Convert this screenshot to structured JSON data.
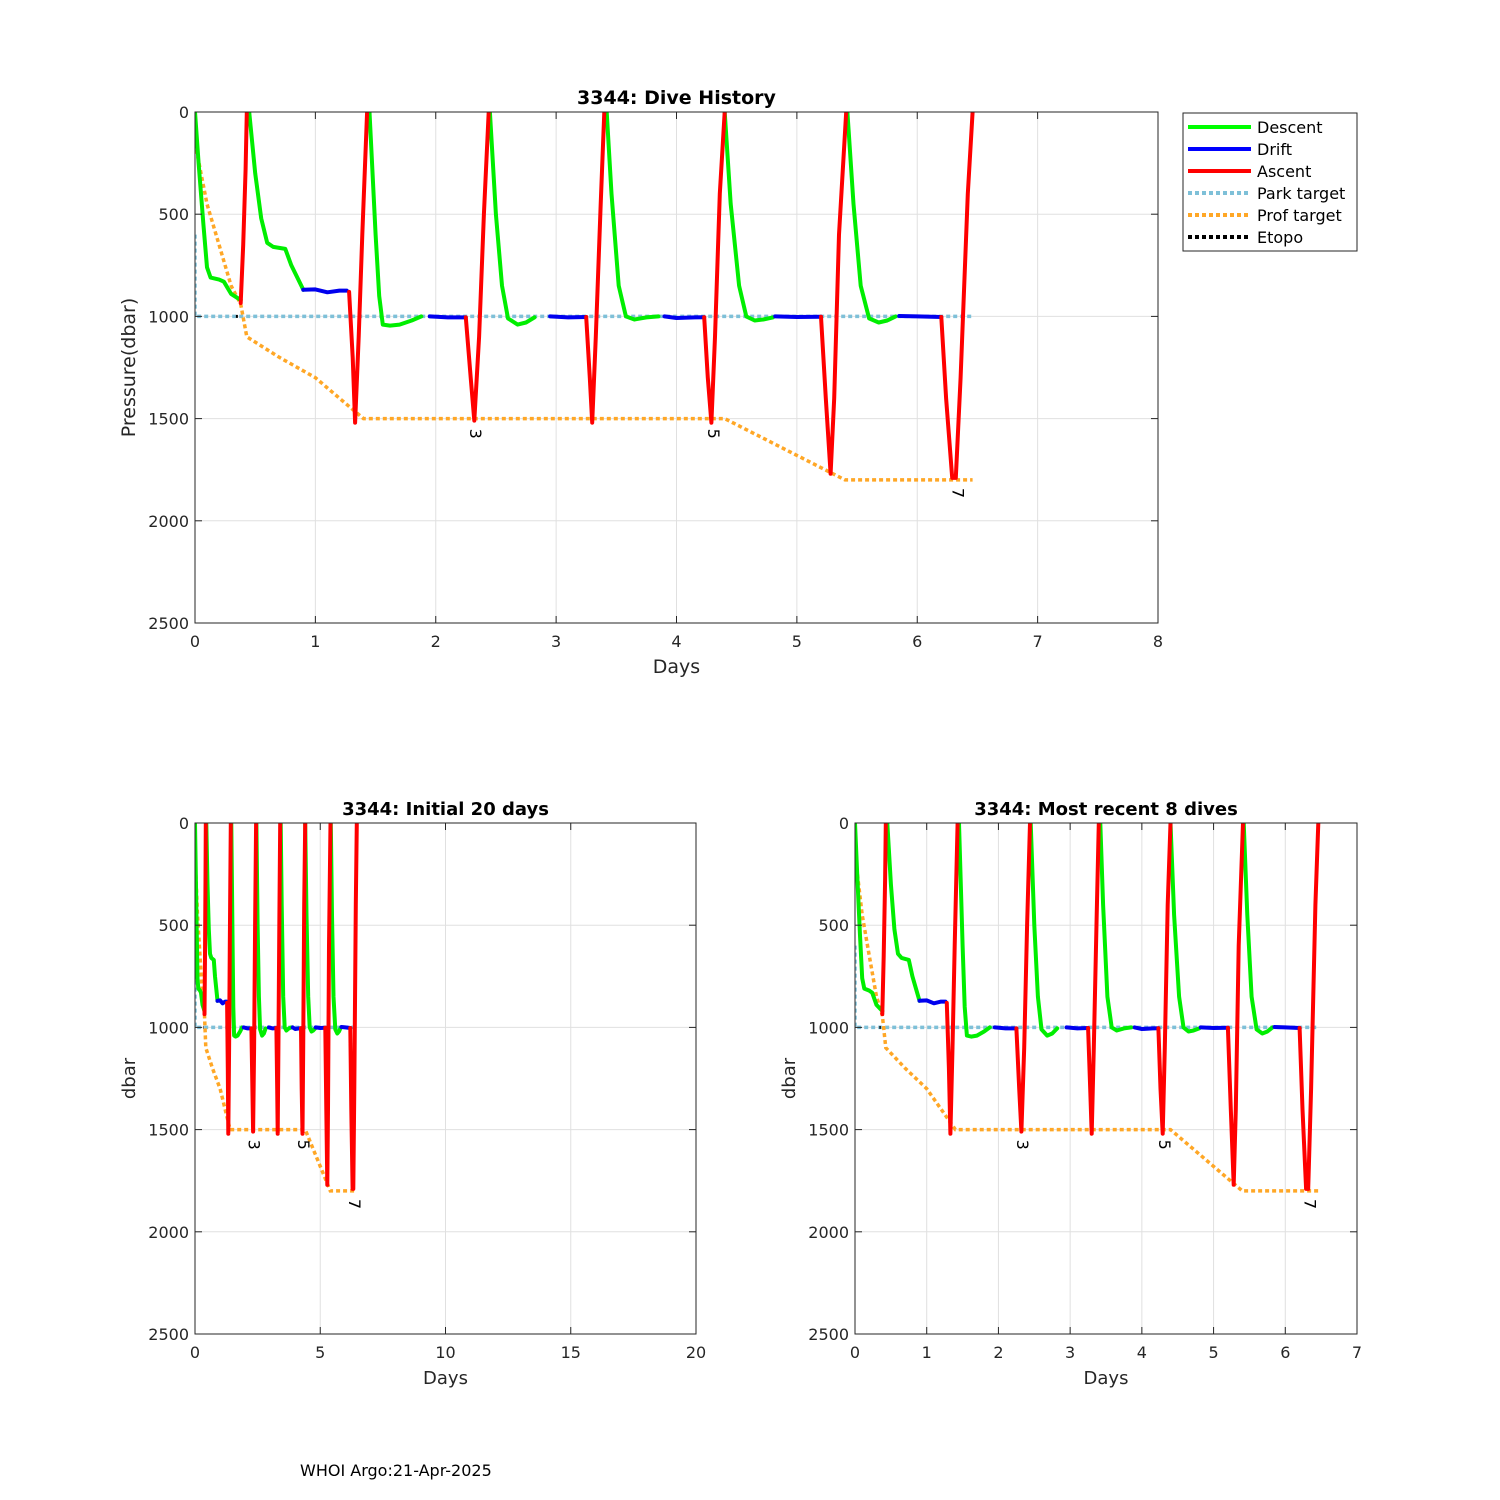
{
  "footer": "WHOI Argo:21-Apr-2025",
  "legend": {
    "entries": [
      {
        "label": "Descent",
        "color": "#00ff00",
        "style": "solid"
      },
      {
        "label": "Drift",
        "color": "#0000ff",
        "style": "solid"
      },
      {
        "label": "Ascent",
        "color": "#ff0000",
        "style": "solid"
      },
      {
        "label": "Park target",
        "color": "#7ec0d8",
        "style": "dotted"
      },
      {
        "label": "Prof target",
        "color": "#ffa726",
        "style": "dotted"
      },
      {
        "label": "Etopo",
        "color": "#000000",
        "style": "dotted"
      }
    ]
  },
  "chart_data": [
    {
      "id": "main",
      "type": "line",
      "title": "3344: Dive History",
      "xlabel": "Days",
      "ylabel": "Pressure(dbar)",
      "xlim": [
        0,
        8
      ],
      "ylim": [
        0,
        2500
      ],
      "y_reversed": true,
      "xticks": [
        0,
        1,
        2,
        3,
        4,
        5,
        6,
        7,
        8
      ],
      "yticks": [
        0,
        500,
        1000,
        1500,
        2000,
        2500
      ],
      "grid": true,
      "legend_position": "outside-top-right",
      "profile_labels": [
        {
          "text": "3",
          "x": 2.32,
          "y": 1510
        },
        {
          "text": "5",
          "x": 4.3,
          "y": 1510
        },
        {
          "text": "7",
          "x": 6.33,
          "y": 1800
        }
      ]
    },
    {
      "id": "initial",
      "type": "line",
      "title": "3344: Initial 20 days",
      "xlabel": "Days",
      "ylabel": "dbar",
      "xlim": [
        0,
        20
      ],
      "ylim": [
        0,
        2500
      ],
      "y_reversed": true,
      "xticks": [
        0,
        5,
        10,
        15,
        20
      ],
      "yticks": [
        0,
        500,
        1000,
        1500,
        2000,
        2500
      ],
      "grid": true,
      "profile_labels": [
        {
          "text": "3",
          "x": 2.32,
          "y": 1510
        },
        {
          "text": "5",
          "x": 4.3,
          "y": 1510
        },
        {
          "text": "7",
          "x": 6.33,
          "y": 1800
        }
      ]
    },
    {
      "id": "recent",
      "type": "line",
      "title": "3344: Most recent 8 dives",
      "xlabel": "Days",
      "ylabel": "dbar",
      "xlim": [
        0,
        7
      ],
      "ylim": [
        0,
        2500
      ],
      "y_reversed": true,
      "xticks": [
        0,
        1,
        2,
        3,
        4,
        5,
        6,
        7
      ],
      "yticks": [
        0,
        500,
        1000,
        1500,
        2000,
        2500
      ],
      "grid": true,
      "profile_labels": [
        {
          "text": "3",
          "x": 2.32,
          "y": 1510
        },
        {
          "text": "5",
          "x": 4.3,
          "y": 1510
        },
        {
          "text": "7",
          "x": 6.33,
          "y": 1800
        }
      ]
    }
  ],
  "series": {
    "descent": [
      [
        [
          0.0,
          0
        ],
        [
          0.03,
          250
        ],
        [
          0.07,
          550
        ],
        [
          0.1,
          760
        ],
        [
          0.13,
          810
        ],
        [
          0.2,
          820
        ],
        [
          0.24,
          830
        ],
        [
          0.3,
          890
        ],
        [
          0.38,
          920
        ]
      ],
      [
        [
          0.45,
          0
        ],
        [
          0.5,
          300
        ],
        [
          0.55,
          520
        ],
        [
          0.6,
          640
        ],
        [
          0.65,
          660
        ],
        [
          0.75,
          670
        ],
        [
          0.8,
          750
        ],
        [
          0.9,
          870
        ]
      ],
      [
        [
          1.45,
          0
        ],
        [
          1.5,
          600
        ],
        [
          1.53,
          900
        ],
        [
          1.56,
          1040
        ],
        [
          1.62,
          1045
        ],
        [
          1.7,
          1040
        ],
        [
          1.8,
          1020
        ],
        [
          1.88,
          1000
        ]
      ],
      [
        [
          2.45,
          0
        ],
        [
          2.5,
          500
        ],
        [
          2.55,
          850
        ],
        [
          2.6,
          1010
        ],
        [
          2.68,
          1040
        ],
        [
          2.75,
          1030
        ],
        [
          2.82,
          1005
        ]
      ],
      [
        [
          3.42,
          0
        ],
        [
          3.46,
          400
        ],
        [
          3.52,
          850
        ],
        [
          3.58,
          1000
        ],
        [
          3.65,
          1015
        ],
        [
          3.75,
          1005
        ],
        [
          3.85,
          1000
        ]
      ],
      [
        [
          4.4,
          0
        ],
        [
          4.45,
          450
        ],
        [
          4.52,
          850
        ],
        [
          4.58,
          1000
        ],
        [
          4.65,
          1020
        ],
        [
          4.72,
          1015
        ],
        [
          4.8,
          1005
        ]
      ],
      [
        [
          5.42,
          0
        ],
        [
          5.47,
          450
        ],
        [
          5.53,
          850
        ],
        [
          5.6,
          1010
        ],
        [
          5.68,
          1030
        ],
        [
          5.75,
          1020
        ],
        [
          5.82,
          1000
        ]
      ]
    ],
    "drift": [
      [
        [
          0.9,
          870
        ],
        [
          1.0,
          868
        ],
        [
          1.1,
          882
        ],
        [
          1.2,
          874
        ],
        [
          1.26,
          874
        ]
      ],
      [
        [
          1.95,
          1000
        ],
        [
          2.1,
          1005
        ],
        [
          2.25,
          1005
        ]
      ],
      [
        [
          2.95,
          1000
        ],
        [
          3.1,
          1005
        ],
        [
          3.25,
          1003
        ]
      ],
      [
        [
          3.9,
          1000
        ],
        [
          4.0,
          1008
        ],
        [
          4.15,
          1005
        ],
        [
          4.23,
          1004
        ]
      ],
      [
        [
          4.82,
          1000
        ],
        [
          5.0,
          1003
        ],
        [
          5.2,
          1002
        ]
      ],
      [
        [
          5.85,
          998
        ],
        [
          6.0,
          1000
        ],
        [
          6.2,
          1003
        ]
      ]
    ],
    "ascent": [
      [
        [
          0.38,
          935
        ],
        [
          0.4,
          650
        ],
        [
          0.42,
          280
        ],
        [
          0.43,
          0
        ]
      ],
      [
        [
          1.28,
          880
        ],
        [
          1.31,
          1200
        ],
        [
          1.33,
          1520
        ],
        [
          1.36,
          1100
        ],
        [
          1.39,
          600
        ],
        [
          1.43,
          0
        ]
      ],
      [
        [
          2.25,
          1005
        ],
        [
          2.29,
          1300
        ],
        [
          2.32,
          1510
        ],
        [
          2.36,
          1100
        ],
        [
          2.4,
          500
        ],
        [
          2.44,
          0
        ]
      ],
      [
        [
          3.25,
          1003
        ],
        [
          3.28,
          1300
        ],
        [
          3.3,
          1520
        ],
        [
          3.33,
          1100
        ],
        [
          3.37,
          450
        ],
        [
          3.4,
          0
        ]
      ],
      [
        [
          4.23,
          1004
        ],
        [
          4.26,
          1300
        ],
        [
          4.29,
          1520
        ],
        [
          4.32,
          1100
        ],
        [
          4.36,
          400
        ],
        [
          4.4,
          0
        ]
      ],
      [
        [
          5.2,
          1002
        ],
        [
          5.24,
          1400
        ],
        [
          5.28,
          1770
        ],
        [
          5.31,
          1400
        ],
        [
          5.35,
          600
        ],
        [
          5.41,
          0
        ]
      ],
      [
        [
          6.2,
          1003
        ],
        [
          6.24,
          1400
        ],
        [
          6.29,
          1790
        ],
        [
          6.32,
          1790
        ],
        [
          6.36,
          1300
        ],
        [
          6.42,
          400
        ],
        [
          6.46,
          0
        ]
      ]
    ],
    "park_target": [
      [
        0.0,
        600
      ],
      [
        0.0,
        1000
      ],
      [
        6.46,
        1000
      ]
    ],
    "prof_target": [
      [
        0.0,
        150
      ],
      [
        0.1,
        450
      ],
      [
        0.2,
        650
      ],
      [
        0.3,
        850
      ],
      [
        0.38,
        940
      ],
      [
        0.43,
        1100
      ],
      [
        0.7,
        1200
      ],
      [
        1.0,
        1300
      ],
      [
        1.2,
        1400
      ],
      [
        1.4,
        1500
      ],
      [
        4.4,
        1500
      ],
      [
        5.4,
        1800
      ],
      [
        6.46,
        1800
      ]
    ],
    "etopo": [
      [
        0.34,
        1000
      ],
      [
        0.36,
        1000
      ]
    ]
  }
}
